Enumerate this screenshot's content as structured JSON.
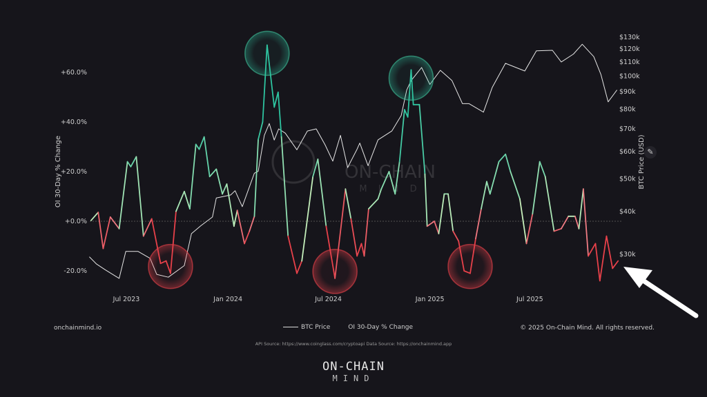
{
  "chart_data": {
    "type": "line",
    "title": "",
    "x_ticks": [
      "Jul 2023",
      "Jan 2024",
      "Jul 2024",
      "Jan 2025",
      "Jul 2025"
    ],
    "left_axis": {
      "label": "OI 30-Day % Change",
      "ticks": [
        "+60.0%",
        "+40.0%",
        "+20.0%",
        "+0.0%",
        "-20.0%"
      ],
      "tick_values": [
        60,
        40,
        20,
        0,
        -20
      ]
    },
    "right_axis": {
      "label": "BTC Price (USD)",
      "scale": "log",
      "ticks": [
        "$130k",
        "$120k",
        "$110k",
        "$100k",
        "$90k",
        "$80k",
        "$70k",
        "$60k",
        "$50k",
        "$40k",
        "$30k"
      ],
      "tick_values": [
        130,
        120,
        110,
        100,
        90,
        80,
        70,
        60,
        50,
        40,
        30
      ]
    },
    "zero_line": "dashed",
    "legend": {
      "position": "bottom-center",
      "items": [
        "BTC Price",
        "OI 30-Day % Change"
      ]
    },
    "colors": {
      "btc": "#e6e6e6",
      "oi_negative": "#e8414a",
      "oi_low_positive": "#c8f0bc",
      "oi_high_positive": "#2ec4a0",
      "background": "#16151b"
    },
    "series": [
      {
        "name": "BTC Price",
        "axis": "right",
        "unit": "k USD",
        "points": [
          [
            "2023-04-25",
            29.5
          ],
          [
            "2023-05-08",
            28.1
          ],
          [
            "2023-05-24",
            27
          ],
          [
            "2023-06-18",
            25.5
          ],
          [
            "2023-06-30",
            30.6
          ],
          [
            "2023-07-22",
            30.6
          ],
          [
            "2023-08-13",
            29.2
          ],
          [
            "2023-08-25",
            26.2
          ],
          [
            "2023-09-15",
            25.7
          ],
          [
            "2023-10-14",
            27.8
          ],
          [
            "2023-10-27",
            34.5
          ],
          [
            "2023-11-13",
            36.4
          ],
          [
            "2023-12-04",
            38.6
          ],
          [
            "2023-12-11",
            43.9
          ],
          [
            "2024-01-06",
            44.8
          ],
          [
            "2024-01-14",
            46.1
          ],
          [
            "2024-01-27",
            41.4
          ],
          [
            "2024-02-18",
            51.9
          ],
          [
            "2024-02-25",
            52.6
          ],
          [
            "2024-03-07",
            67
          ],
          [
            "2024-03-16",
            72.6
          ],
          [
            "2024-03-25",
            64.9
          ],
          [
            "2024-04-02",
            70
          ],
          [
            "2024-04-14",
            68
          ],
          [
            "2024-05-05",
            60.8
          ],
          [
            "2024-05-24",
            69
          ],
          [
            "2024-06-09",
            70
          ],
          [
            "2024-06-25",
            62.9
          ],
          [
            "2024-07-09",
            56.3
          ],
          [
            "2024-07-23",
            67
          ],
          [
            "2024-08-05",
            53.9
          ],
          [
            "2024-08-22",
            61
          ],
          [
            "2024-08-27",
            63.6
          ],
          [
            "2024-09-11",
            54.6
          ],
          [
            "2024-09-29",
            65
          ],
          [
            "2024-10-24",
            69
          ],
          [
            "2024-11-10",
            76.6
          ],
          [
            "2024-11-20",
            91
          ],
          [
            "2024-11-28",
            97
          ],
          [
            "2024-12-17",
            106
          ],
          [
            "2025-01-01",
            94.5
          ],
          [
            "2025-01-20",
            104
          ],
          [
            "2025-02-10",
            97
          ],
          [
            "2025-03-01",
            83
          ],
          [
            "2025-03-13",
            83
          ],
          [
            "2025-04-08",
            78.4
          ],
          [
            "2025-04-24",
            92.7
          ],
          [
            "2025-05-18",
            109
          ],
          [
            "2025-06-22",
            103.5
          ],
          [
            "2025-07-13",
            118.6
          ],
          [
            "2025-08-11",
            119
          ],
          [
            "2025-08-27",
            110
          ],
          [
            "2025-09-18",
            116
          ],
          [
            "2025-10-04",
            124
          ],
          [
            "2025-10-25",
            114
          ],
          [
            "2025-11-07",
            101
          ],
          [
            "2025-11-20",
            84
          ],
          [
            "2025-12-06",
            91
          ]
        ]
      },
      {
        "name": "OI 30-Day % Change",
        "axis": "left",
        "unit": "%",
        "points": [
          [
            "2023-04-28",
            0.3
          ],
          [
            "2023-05-11",
            3.6
          ],
          [
            "2023-05-20",
            -11
          ],
          [
            "2023-06-02",
            1.7
          ],
          [
            "2023-06-18",
            -3
          ],
          [
            "2023-07-03",
            24
          ],
          [
            "2023-07-09",
            22
          ],
          [
            "2023-07-19",
            26
          ],
          [
            "2023-08-01",
            -6
          ],
          [
            "2023-08-16",
            1
          ],
          [
            "2023-09-01",
            -17
          ],
          [
            "2023-09-11",
            -16
          ],
          [
            "2023-09-19",
            -21
          ],
          [
            "2023-09-29",
            4
          ],
          [
            "2023-10-14",
            12
          ],
          [
            "2023-10-24",
            5
          ],
          [
            "2023-11-04",
            31
          ],
          [
            "2023-11-10",
            29
          ],
          [
            "2023-11-19",
            34
          ],
          [
            "2023-11-29",
            18
          ],
          [
            "2023-12-11",
            21
          ],
          [
            "2023-12-22",
            11
          ],
          [
            "2023-12-30",
            15
          ],
          [
            "2024-01-12",
            -2
          ],
          [
            "2024-01-18",
            4.4
          ],
          [
            "2024-01-31",
            -9
          ],
          [
            "2024-02-09",
            -4
          ],
          [
            "2024-02-18",
            2
          ],
          [
            "2024-02-25",
            33
          ],
          [
            "2024-03-04",
            40
          ],
          [
            "2024-03-12",
            71
          ],
          [
            "2024-03-25",
            46
          ],
          [
            "2024-04-01",
            52
          ],
          [
            "2024-04-07",
            34
          ],
          [
            "2024-04-19",
            -6
          ],
          [
            "2024-05-05",
            -21
          ],
          [
            "2024-05-14",
            -16
          ],
          [
            "2024-06-03",
            18
          ],
          [
            "2024-06-12",
            25
          ],
          [
            "2024-06-27",
            -2
          ],
          [
            "2024-07-13",
            -23
          ],
          [
            "2024-08-01",
            13
          ],
          [
            "2024-08-11",
            1
          ],
          [
            "2024-08-22",
            -14
          ],
          [
            "2024-08-30",
            -9
          ],
          [
            "2024-09-04",
            -14
          ],
          [
            "2024-09-12",
            5
          ],
          [
            "2024-09-29",
            9
          ],
          [
            "2024-10-05",
            13
          ],
          [
            "2024-10-19",
            20
          ],
          [
            "2024-10-30",
            11
          ],
          [
            "2024-11-07",
            24
          ],
          [
            "2024-11-16",
            45
          ],
          [
            "2024-11-22",
            42
          ],
          [
            "2024-11-28",
            61
          ],
          [
            "2024-12-02",
            47
          ],
          [
            "2024-12-13",
            47
          ],
          [
            "2024-12-23",
            19
          ],
          [
            "2024-12-27",
            -2
          ],
          [
            "2025-01-09",
            0
          ],
          [
            "2025-01-17",
            -5
          ],
          [
            "2025-01-27",
            11
          ],
          [
            "2025-02-03",
            11
          ],
          [
            "2025-02-12",
            -4
          ],
          [
            "2025-02-22",
            -8
          ],
          [
            "2025-03-04",
            -20
          ],
          [
            "2025-03-15",
            -21
          ],
          [
            "2025-03-25",
            -7
          ],
          [
            "2025-04-04",
            5
          ],
          [
            "2025-04-14",
            16
          ],
          [
            "2025-04-20",
            11
          ],
          [
            "2025-05-06",
            24
          ],
          [
            "2025-05-18",
            27
          ],
          [
            "2025-05-27",
            20
          ],
          [
            "2025-06-13",
            9
          ],
          [
            "2025-06-25",
            -9
          ],
          [
            "2025-07-06",
            3
          ],
          [
            "2025-07-19",
            24
          ],
          [
            "2025-07-29",
            18
          ],
          [
            "2025-08-14",
            -4
          ],
          [
            "2025-08-27",
            -3
          ],
          [
            "2025-09-09",
            2
          ],
          [
            "2025-09-21",
            2
          ],
          [
            "2025-09-28",
            -3
          ],
          [
            "2025-10-06",
            13
          ],
          [
            "2025-10-15",
            -14
          ],
          [
            "2025-10-28",
            -9
          ],
          [
            "2025-11-05",
            -24
          ],
          [
            "2025-11-17",
            -6
          ],
          [
            "2025-11-28",
            -19
          ],
          [
            "2025-12-08",
            -16
          ]
        ]
      }
    ],
    "annotations": {
      "highlight_peaks": [
        "2024-03-12",
        "2024-11-28"
      ],
      "highlight_troughs": [
        "2023-09-19",
        "2024-07-13",
        "2025-03-15"
      ],
      "arrow_target": "2025-12-08"
    }
  },
  "footer": {
    "site": "onchainmind.io",
    "copyright": "© 2025 On-Chain Mind. All rights reserved.",
    "api_source": "API Source: https://www.coinglass.com/cryptoapi Data Source: https://onchainmind.app",
    "legend_btc": "BTC Price",
    "legend_oi": "OI 30-Day % Change"
  },
  "watermark": {
    "line1": "ON-CHAIN",
    "line2": "M I N D"
  },
  "logo": {
    "line1": "ON-CHAIN",
    "line2": "MIND"
  },
  "icons": {
    "edit": "pencil-icon"
  }
}
